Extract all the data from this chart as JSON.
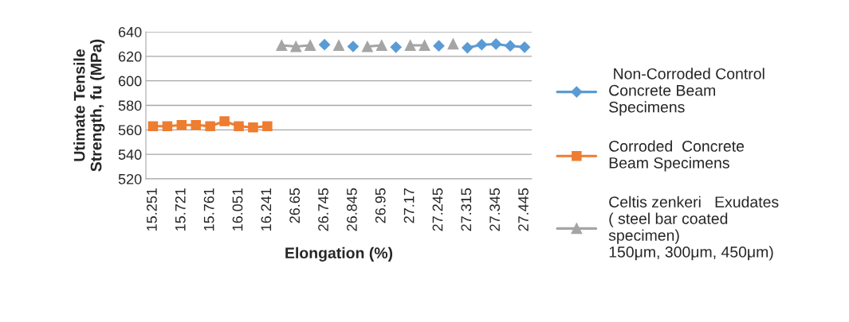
{
  "chart_data": {
    "type": "line",
    "xlabel": "Elongation (%)",
    "ylabel": "Utimate Tensile\nStrength, fu (MPa)",
    "categories": [
      "15.251",
      null,
      "15.721",
      null,
      "15.761",
      null,
      "16.051",
      null,
      "16.241",
      null,
      "26.65",
      null,
      "26.745",
      null,
      "26.845",
      null,
      "26.95",
      null,
      "27.17",
      null,
      "27.245",
      null,
      "27.315",
      null,
      "27.345",
      null,
      "27.445"
    ],
    "series": [
      {
        "name": " Non-Corroded Control\nConcrete Beam\nSpecimens",
        "color": "#5b9bd5",
        "marker": "diamond",
        "values": [
          null,
          null,
          null,
          null,
          null,
          null,
          null,
          null,
          null,
          null,
          null,
          null,
          629.5,
          null,
          628,
          null,
          null,
          627.5,
          null,
          null,
          628.5,
          null,
          627,
          629.5,
          630,
          628.5,
          627.5
        ]
      },
      {
        "name": "Corroded  Concrete\nBeam Specimens",
        "color": "#ed7d31",
        "marker": "square",
        "values": [
          563,
          563,
          564,
          564,
          563,
          567,
          563,
          562,
          563,
          null,
          null,
          null,
          null,
          null,
          null,
          null,
          null,
          null,
          null,
          null,
          null,
          null,
          null,
          null,
          null,
          null,
          null
        ]
      },
      {
        "name": "Celtis zenkeri   Exudates\n( steel bar coated\nspecimen)\n150μm, 300μm, 450μm)",
        "color": "#a5a5a5",
        "marker": "triangle",
        "values": [
          null,
          null,
          null,
          null,
          null,
          null,
          null,
          null,
          null,
          629,
          628,
          629,
          null,
          629,
          null,
          628,
          629,
          null,
          629,
          629,
          null,
          630,
          null,
          null,
          null,
          null,
          null
        ]
      }
    ],
    "ylim": [
      520,
      640
    ],
    "yticks": [
      520,
      540,
      560,
      580,
      600,
      620,
      640
    ],
    "grid": "y",
    "legend": "right"
  }
}
